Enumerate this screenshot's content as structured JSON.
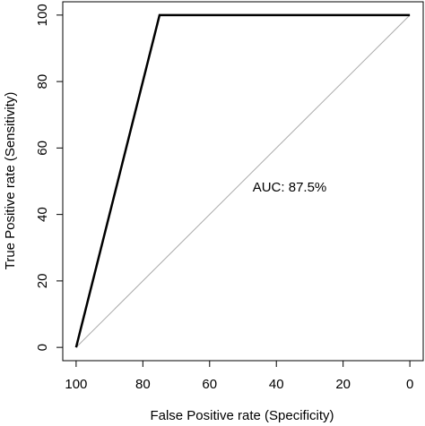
{
  "chart_data": {
    "type": "line",
    "xlabel": "False Positive rate (Specificity)",
    "ylabel": "True Positive rate (Sensitivity)",
    "annotation": "AUC: 87.5%",
    "xlim": [
      104,
      -4
    ],
    "ylim": [
      -4,
      104
    ],
    "xticks": [
      100,
      80,
      60,
      40,
      20,
      0
    ],
    "yticks": [
      0,
      20,
      40,
      60,
      80,
      100
    ],
    "series": [
      {
        "x": [
          100,
          75,
          0
        ],
        "values": [
          0,
          100,
          100
        ],
        "color": "#000000",
        "linewidth": 2.5
      },
      {
        "x": [
          100,
          0
        ],
        "values": [
          0,
          100
        ],
        "color": "#aaaaaa",
        "linewidth": 1
      }
    ]
  }
}
